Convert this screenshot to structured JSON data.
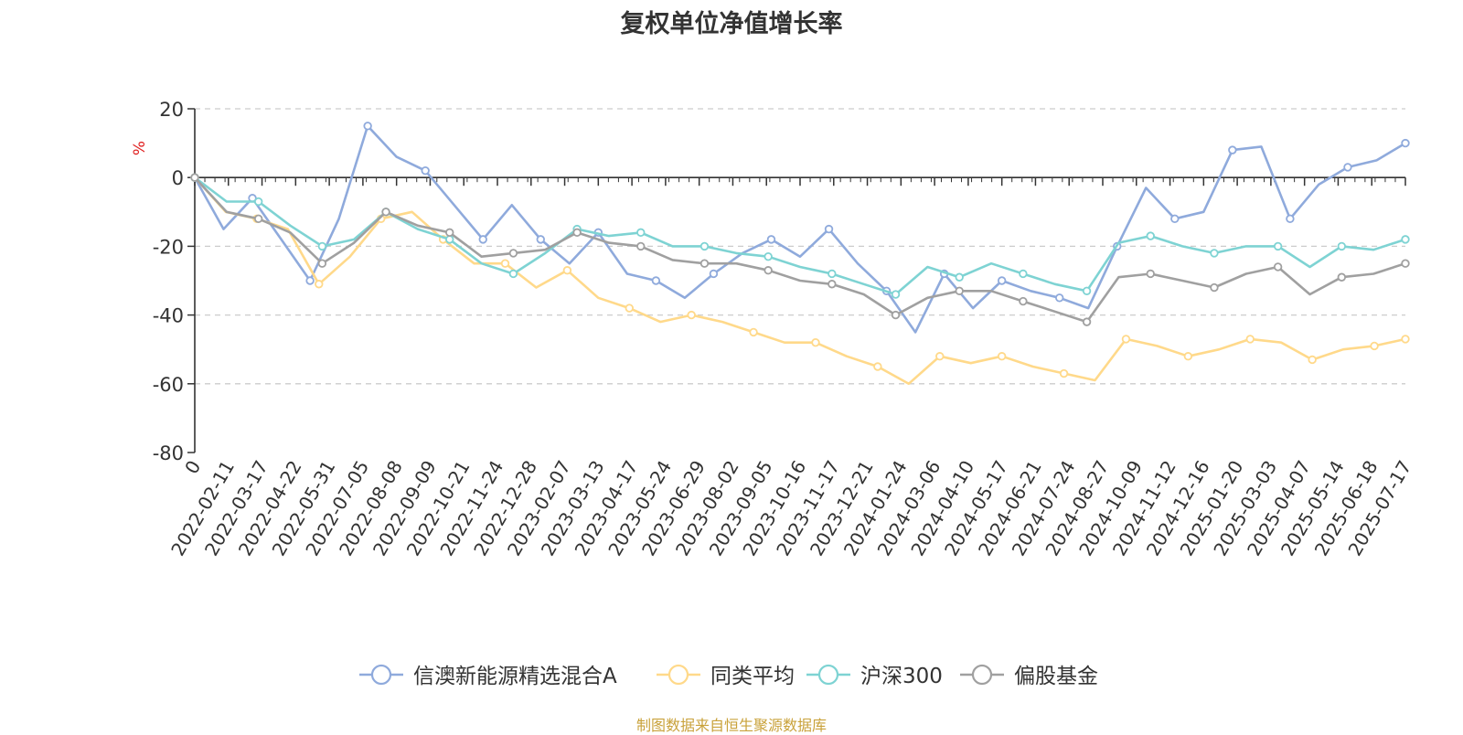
{
  "source_note": "制图数据来自恒生聚源数据库",
  "chart_data": {
    "type": "line",
    "title": "复权单位净值增长率",
    "ylabel": "%",
    "ylim": [
      -80,
      20
    ],
    "yticks": [
      20,
      0,
      -20,
      -40,
      -60,
      -80
    ],
    "grid": true,
    "legend_position": "bottom",
    "x_tick_labels": [
      "0",
      "2022-02-11",
      "2022-03-17",
      "2022-04-22",
      "2022-05-31",
      "2022-07-05",
      "2022-08-08",
      "2022-09-09",
      "2022-10-21",
      "2022-11-24",
      "2022-12-28",
      "2023-02-07",
      "2023-03-13",
      "2023-04-17",
      "2023-05-24",
      "2023-06-29",
      "2023-08-02",
      "2023-09-05",
      "2023-10-16",
      "2023-11-17",
      "2023-12-21",
      "2024-01-24",
      "2024-03-06",
      "2024-04-10",
      "2024-05-17",
      "2024-06-21",
      "2024-07-24",
      "2024-08-27",
      "2024-10-09",
      "2024-11-12",
      "2024-12-16",
      "2025-01-20",
      "2025-03-03",
      "2025-04-07",
      "2025-05-14",
      "2025-06-18",
      "2025-07-17"
    ],
    "series": [
      {
        "name": "信澳新能源精选混合A",
        "color": "#8faadc",
        "values": [
          0,
          -15,
          -6,
          -18,
          -30,
          -12,
          15,
          6,
          2,
          -8,
          -18,
          -8,
          -18,
          -25,
          -16,
          -28,
          -30,
          -35,
          -28,
          -22,
          -18,
          -23,
          -15,
          -25,
          -33,
          -45,
          -28,
          -38,
          -30,
          -33,
          -35,
          -38,
          -20,
          -3,
          -12,
          -10,
          8,
          9,
          -12,
          -2,
          3,
          5,
          10
        ]
      },
      {
        "name": "同类平均",
        "color": "#ffd98a",
        "values": [
          0,
          -10,
          -12,
          -15,
          -31,
          -23,
          -12,
          -10,
          -18,
          -25,
          -25,
          -32,
          -27,
          -35,
          -38,
          -42,
          -40,
          -42,
          -45,
          -48,
          -48,
          -52,
          -55,
          -60,
          -52,
          -54,
          -52,
          -55,
          -57,
          -59,
          -47,
          -49,
          -52,
          -50,
          -47,
          -48,
          -53,
          -50,
          -49,
          -47
        ]
      },
      {
        "name": "沪深300",
        "color": "#7ed3d3",
        "values": [
          0,
          -7,
          -7,
          -14,
          -20,
          -18,
          -10,
          -15,
          -18,
          -25,
          -28,
          -22,
          -15,
          -17,
          -16,
          -20,
          -20,
          -22,
          -23,
          -26,
          -28,
          -31,
          -34,
          -26,
          -29,
          -25,
          -28,
          -31,
          -33,
          -19,
          -17,
          -20,
          -22,
          -20,
          -20,
          -26,
          -20,
          -21,
          -18
        ]
      },
      {
        "name": "偏股基金",
        "color": "#a0a0a0",
        "values": [
          0,
          -10,
          -12,
          -16,
          -25,
          -19,
          -10,
          -14,
          -16,
          -23,
          -22,
          -21,
          -16,
          -19,
          -20,
          -24,
          -25,
          -25,
          -27,
          -30,
          -31,
          -34,
          -40,
          -35,
          -33,
          -33,
          -36,
          -39,
          -42,
          -29,
          -28,
          -30,
          -32,
          -28,
          -26,
          -34,
          -29,
          -28,
          -25
        ]
      }
    ]
  }
}
